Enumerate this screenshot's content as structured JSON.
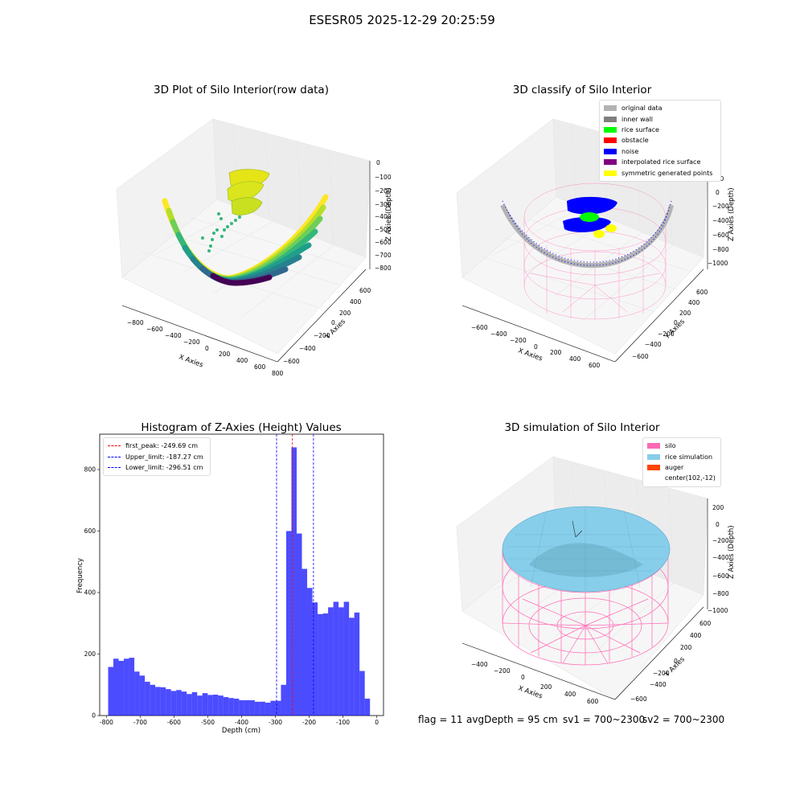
{
  "figure": {
    "suptitle": "ESESR05 2025-12-29 20:25:59",
    "status": {
      "flag": "flag = 11",
      "avg_depth": "avgDepth = 95 cm",
      "sv1": "sv1 = 700~2300",
      "sv2": "sv2 = 700~2300"
    }
  },
  "chart_data": [
    {
      "type": "scatter",
      "title": "3D Plot of Silo Interior(row data)",
      "xlabel": "X Axies",
      "ylabel": "Y Axies",
      "zlabel": "Z Axies (Depth)",
      "x_ticks": [
        "−800",
        "−600",
        "−400",
        "−200",
        "0",
        "200",
        "400",
        "600",
        "800"
      ],
      "y_ticks": [
        "−600",
        "−400",
        "−200",
        "0",
        "200",
        "400",
        "600"
      ],
      "z_ticks": [
        "0",
        "−100",
        "−200",
        "−300",
        "−400",
        "−500",
        "−600",
        "−700",
        "−800"
      ],
      "colormap": "viridis"
    },
    {
      "type": "scatter",
      "title": "3D classify of Silo Interior",
      "xlabel": "X Axies",
      "ylabel": "Y Axies",
      "zlabel": "Z Axies (Depth)",
      "x_ticks": [
        "−600",
        "−400",
        "−200",
        "0",
        "200",
        "400",
        "600"
      ],
      "y_ticks": [
        "−600",
        "−400",
        "−200",
        "0",
        "200",
        "400",
        "600"
      ],
      "z_ticks": [
        "200",
        "0",
        "−200",
        "−400",
        "−600",
        "−800",
        "−1000"
      ],
      "legend": [
        {
          "label": "original data",
          "color": "#b3b3b3"
        },
        {
          "label": "inner wall",
          "color": "#808080"
        },
        {
          "label": "rice surface",
          "color": "#00ff00"
        },
        {
          "label": "obstacle",
          "color": "#ff0000"
        },
        {
          "label": "noise",
          "color": "#0000ff"
        },
        {
          "label": "interpolated rice surface",
          "color": "#800080"
        },
        {
          "label": "symmetric generated points",
          "color": "#ffff00"
        }
      ]
    },
    {
      "type": "bar",
      "title": "Histogram of Z-Axies (Height) Values",
      "xlabel": "Depth (cm)",
      "ylabel": "Frequency",
      "xlim": [
        -820,
        20
      ],
      "ylim": [
        0,
        915
      ],
      "x_ticks": [
        -800,
        -700,
        -600,
        -500,
        -400,
        -300,
        -200,
        -100,
        0
      ],
      "y_ticks": [
        0,
        200,
        400,
        600,
        800
      ],
      "bin_start": -795,
      "bin_width": 15.5,
      "values": [
        158,
        185,
        178,
        185,
        188,
        143,
        130,
        110,
        100,
        93,
        92,
        86,
        80,
        83,
        78,
        70,
        76,
        65,
        73,
        67,
        68,
        65,
        60,
        57,
        55,
        50,
        50,
        50,
        45,
        45,
        42,
        48,
        48,
        100,
        600,
        872,
        592,
        477,
        415,
        368,
        330,
        332,
        352,
        370,
        352,
        370,
        318,
        335,
        145,
        55
      ],
      "color": "#0000ff",
      "lines": [
        {
          "label": "first_peak: -249.69 cm",
          "x": -249.69,
          "color": "#ff0000"
        },
        {
          "label": "Upper_limit: -187.27 cm",
          "x": -187.27,
          "color": "#0000ff"
        },
        {
          "label": "Lower_limit: -296.51 cm",
          "x": -296.51,
          "color": "#0000ff"
        }
      ]
    },
    {
      "type": "scatter",
      "title": "3D simulation of Silo Interior",
      "xlabel": "X Axies",
      "ylabel": "Y Axies",
      "zlabel": "Z Axies (Depth)",
      "x_ticks": [
        "−400",
        "−200",
        "0",
        "200",
        "400",
        "600"
      ],
      "y_ticks": [
        "−600",
        "−400",
        "−200",
        "0",
        "200",
        "400",
        "600"
      ],
      "z_ticks": [
        "200",
        "0",
        "−200",
        "−400",
        "−600",
        "−800",
        "−1000"
      ],
      "legend": [
        {
          "label": "silo",
          "color": "#ff69b4"
        },
        {
          "label": "rice simulation",
          "color": "#87ceeb"
        },
        {
          "label": "auger",
          "color": "#ff4500"
        },
        {
          "label": "center(102,-12)",
          "color": ""
        }
      ]
    }
  ]
}
